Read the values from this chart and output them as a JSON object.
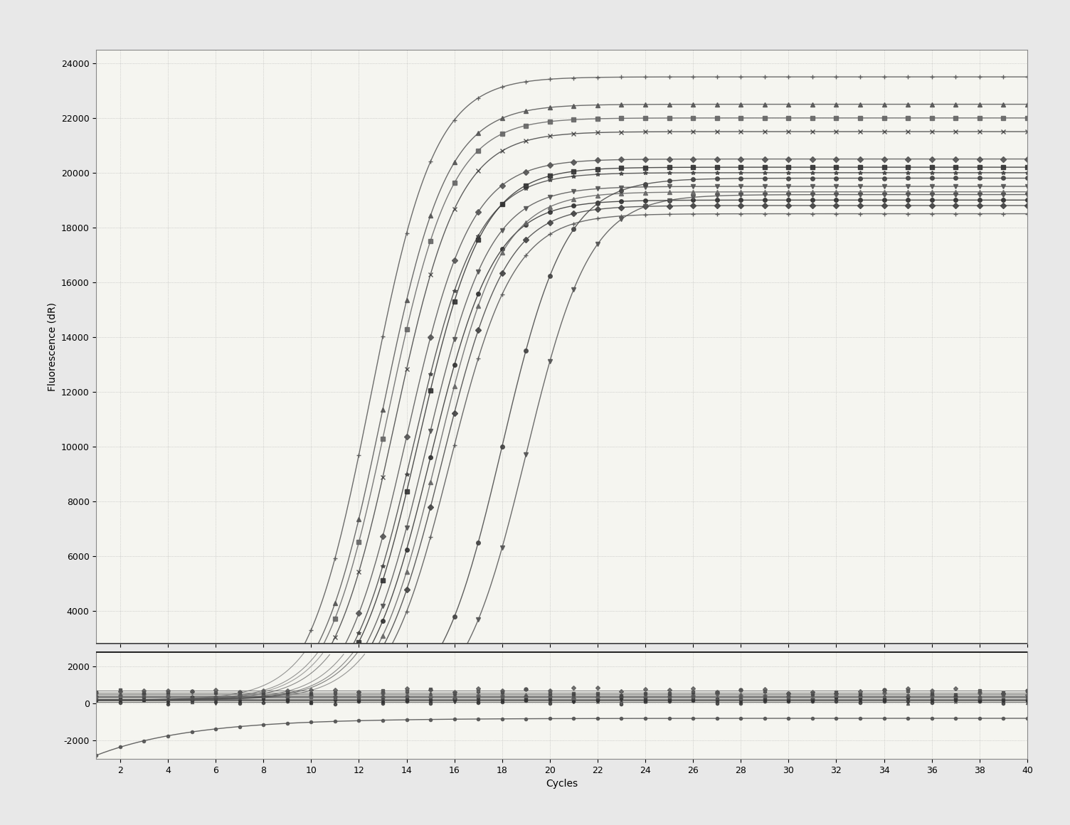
{
  "x_min": 1,
  "x_max": 40,
  "y_min": -3000,
  "y_max": 24000,
  "threshold_y": 2800,
  "xlabel": "Cycles",
  "ylabel": "Fluorescence (dR)",
  "background_color": "#e8e8e8",
  "plot_bg_color": "#f5f5f0",
  "grid_color": "#999999",
  "threshold_color": "#1a1a1a",
  "xticks": [
    2,
    4,
    6,
    8,
    10,
    12,
    14,
    16,
    18,
    20,
    22,
    24,
    26,
    28,
    30,
    32,
    34,
    36,
    38,
    40
  ],
  "yticks_upper": [
    4000,
    6000,
    8000,
    10000,
    12000,
    14000,
    16000,
    18000,
    20000,
    22000,
    24000
  ],
  "yticks_lower": [
    -2000,
    0,
    2000
  ],
  "upper_panel_ylim": [
    2800,
    24500
  ],
  "lower_panel_ylim": [
    -3000,
    2800
  ],
  "sigmoid_curves": [
    {
      "ct": 12.5,
      "ymax": 23500,
      "color": "#555555",
      "marker": "+",
      "lw": 1.0
    },
    {
      "ct": 13.0,
      "ymax": 22500,
      "color": "#555555",
      "marker": "^",
      "lw": 1.0
    },
    {
      "ct": 13.2,
      "ymax": 22000,
      "color": "#666666",
      "marker": "s",
      "lw": 1.0
    },
    {
      "ct": 13.5,
      "ymax": 21500,
      "color": "#444444",
      "marker": "x",
      "lw": 1.0
    },
    {
      "ct": 14.0,
      "ymax": 20500,
      "color": "#555555",
      "marker": "D",
      "lw": 1.0
    },
    {
      "ct": 14.3,
      "ymax": 20000,
      "color": "#444444",
      "marker": "*",
      "lw": 1.0
    },
    {
      "ct": 14.5,
      "ymax": 20200,
      "color": "#333333",
      "marker": "s",
      "lw": 1.0
    },
    {
      "ct": 14.8,
      "ymax": 19500,
      "color": "#555555",
      "marker": "v",
      "lw": 1.0
    },
    {
      "ct": 15.0,
      "ymax": 19000,
      "color": "#333333",
      "marker": "o",
      "lw": 1.0
    },
    {
      "ct": 15.3,
      "ymax": 19300,
      "color": "#666666",
      "marker": "^",
      "lw": 1.0
    },
    {
      "ct": 15.5,
      "ymax": 18800,
      "color": "#444444",
      "marker": "D",
      "lw": 1.0
    },
    {
      "ct": 15.8,
      "ymax": 18500,
      "color": "#555555",
      "marker": "+",
      "lw": 1.0
    },
    {
      "ct": 18.0,
      "ymax": 19800,
      "color": "#444444",
      "marker": "o",
      "lw": 1.0
    },
    {
      "ct": 19.0,
      "ymax": 19200,
      "color": "#555555",
      "marker": "v",
      "lw": 1.0
    }
  ],
  "flat_curves": [
    {
      "y_base": 300,
      "color": "#555555",
      "marker": "s"
    },
    {
      "y_base": 200,
      "color": "#444444",
      "marker": "^"
    },
    {
      "y_base": 400,
      "color": "#666666",
      "marker": "D"
    },
    {
      "y_base": 100,
      "color": "#333333",
      "marker": "o"
    },
    {
      "y_base": 500,
      "color": "#555555",
      "marker": "+"
    },
    {
      "y_base": 250,
      "color": "#444444",
      "marker": "x"
    },
    {
      "y_base": 350,
      "color": "#666666",
      "marker": "*"
    },
    {
      "y_base": 150,
      "color": "#333333",
      "marker": "v"
    },
    {
      "y_base": 450,
      "color": "#555555",
      "marker": "^"
    },
    {
      "y_base": 600,
      "color": "#444444",
      "marker": "s"
    },
    {
      "y_base": 700,
      "color": "#555555",
      "marker": "D"
    }
  ],
  "negative_curve": {
    "ct": 5.0,
    "ymin": -2800,
    "ymax": -800,
    "color": "#555555",
    "marker": "o"
  },
  "divider_y": 2800,
  "font_size_axis_label": 10,
  "font_size_tick": 9
}
